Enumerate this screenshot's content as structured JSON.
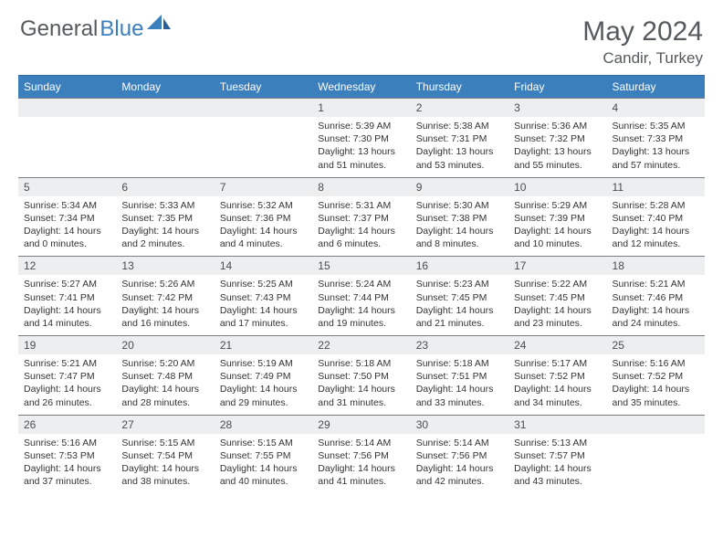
{
  "brand": {
    "part1": "General",
    "part2": "Blue"
  },
  "title": "May 2024",
  "location": "Candir, Turkey",
  "colors": {
    "header_bg": "#3b7fbd",
    "header_text": "#ffffff",
    "daynum_bg": "#eceeef",
    "border": "#7a7d80",
    "text": "#333333",
    "title_color": "#555a5e"
  },
  "weekdays": [
    "Sunday",
    "Monday",
    "Tuesday",
    "Wednesday",
    "Thursday",
    "Friday",
    "Saturday"
  ],
  "weeks": [
    [
      {
        "n": "",
        "sr": "",
        "ss": "",
        "dl": ""
      },
      {
        "n": "",
        "sr": "",
        "ss": "",
        "dl": ""
      },
      {
        "n": "",
        "sr": "",
        "ss": "",
        "dl": ""
      },
      {
        "n": "1",
        "sr": "Sunrise: 5:39 AM",
        "ss": "Sunset: 7:30 PM",
        "dl": "Daylight: 13 hours and 51 minutes."
      },
      {
        "n": "2",
        "sr": "Sunrise: 5:38 AM",
        "ss": "Sunset: 7:31 PM",
        "dl": "Daylight: 13 hours and 53 minutes."
      },
      {
        "n": "3",
        "sr": "Sunrise: 5:36 AM",
        "ss": "Sunset: 7:32 PM",
        "dl": "Daylight: 13 hours and 55 minutes."
      },
      {
        "n": "4",
        "sr": "Sunrise: 5:35 AM",
        "ss": "Sunset: 7:33 PM",
        "dl": "Daylight: 13 hours and 57 minutes."
      }
    ],
    [
      {
        "n": "5",
        "sr": "Sunrise: 5:34 AM",
        "ss": "Sunset: 7:34 PM",
        "dl": "Daylight: 14 hours and 0 minutes."
      },
      {
        "n": "6",
        "sr": "Sunrise: 5:33 AM",
        "ss": "Sunset: 7:35 PM",
        "dl": "Daylight: 14 hours and 2 minutes."
      },
      {
        "n": "7",
        "sr": "Sunrise: 5:32 AM",
        "ss": "Sunset: 7:36 PM",
        "dl": "Daylight: 14 hours and 4 minutes."
      },
      {
        "n": "8",
        "sr": "Sunrise: 5:31 AM",
        "ss": "Sunset: 7:37 PM",
        "dl": "Daylight: 14 hours and 6 minutes."
      },
      {
        "n": "9",
        "sr": "Sunrise: 5:30 AM",
        "ss": "Sunset: 7:38 PM",
        "dl": "Daylight: 14 hours and 8 minutes."
      },
      {
        "n": "10",
        "sr": "Sunrise: 5:29 AM",
        "ss": "Sunset: 7:39 PM",
        "dl": "Daylight: 14 hours and 10 minutes."
      },
      {
        "n": "11",
        "sr": "Sunrise: 5:28 AM",
        "ss": "Sunset: 7:40 PM",
        "dl": "Daylight: 14 hours and 12 minutes."
      }
    ],
    [
      {
        "n": "12",
        "sr": "Sunrise: 5:27 AM",
        "ss": "Sunset: 7:41 PM",
        "dl": "Daylight: 14 hours and 14 minutes."
      },
      {
        "n": "13",
        "sr": "Sunrise: 5:26 AM",
        "ss": "Sunset: 7:42 PM",
        "dl": "Daylight: 14 hours and 16 minutes."
      },
      {
        "n": "14",
        "sr": "Sunrise: 5:25 AM",
        "ss": "Sunset: 7:43 PM",
        "dl": "Daylight: 14 hours and 17 minutes."
      },
      {
        "n": "15",
        "sr": "Sunrise: 5:24 AM",
        "ss": "Sunset: 7:44 PM",
        "dl": "Daylight: 14 hours and 19 minutes."
      },
      {
        "n": "16",
        "sr": "Sunrise: 5:23 AM",
        "ss": "Sunset: 7:45 PM",
        "dl": "Daylight: 14 hours and 21 minutes."
      },
      {
        "n": "17",
        "sr": "Sunrise: 5:22 AM",
        "ss": "Sunset: 7:45 PM",
        "dl": "Daylight: 14 hours and 23 minutes."
      },
      {
        "n": "18",
        "sr": "Sunrise: 5:21 AM",
        "ss": "Sunset: 7:46 PM",
        "dl": "Daylight: 14 hours and 24 minutes."
      }
    ],
    [
      {
        "n": "19",
        "sr": "Sunrise: 5:21 AM",
        "ss": "Sunset: 7:47 PM",
        "dl": "Daylight: 14 hours and 26 minutes."
      },
      {
        "n": "20",
        "sr": "Sunrise: 5:20 AM",
        "ss": "Sunset: 7:48 PM",
        "dl": "Daylight: 14 hours and 28 minutes."
      },
      {
        "n": "21",
        "sr": "Sunrise: 5:19 AM",
        "ss": "Sunset: 7:49 PM",
        "dl": "Daylight: 14 hours and 29 minutes."
      },
      {
        "n": "22",
        "sr": "Sunrise: 5:18 AM",
        "ss": "Sunset: 7:50 PM",
        "dl": "Daylight: 14 hours and 31 minutes."
      },
      {
        "n": "23",
        "sr": "Sunrise: 5:18 AM",
        "ss": "Sunset: 7:51 PM",
        "dl": "Daylight: 14 hours and 33 minutes."
      },
      {
        "n": "24",
        "sr": "Sunrise: 5:17 AM",
        "ss": "Sunset: 7:52 PM",
        "dl": "Daylight: 14 hours and 34 minutes."
      },
      {
        "n": "25",
        "sr": "Sunrise: 5:16 AM",
        "ss": "Sunset: 7:52 PM",
        "dl": "Daylight: 14 hours and 35 minutes."
      }
    ],
    [
      {
        "n": "26",
        "sr": "Sunrise: 5:16 AM",
        "ss": "Sunset: 7:53 PM",
        "dl": "Daylight: 14 hours and 37 minutes."
      },
      {
        "n": "27",
        "sr": "Sunrise: 5:15 AM",
        "ss": "Sunset: 7:54 PM",
        "dl": "Daylight: 14 hours and 38 minutes."
      },
      {
        "n": "28",
        "sr": "Sunrise: 5:15 AM",
        "ss": "Sunset: 7:55 PM",
        "dl": "Daylight: 14 hours and 40 minutes."
      },
      {
        "n": "29",
        "sr": "Sunrise: 5:14 AM",
        "ss": "Sunset: 7:56 PM",
        "dl": "Daylight: 14 hours and 41 minutes."
      },
      {
        "n": "30",
        "sr": "Sunrise: 5:14 AM",
        "ss": "Sunset: 7:56 PM",
        "dl": "Daylight: 14 hours and 42 minutes."
      },
      {
        "n": "31",
        "sr": "Sunrise: 5:13 AM",
        "ss": "Sunset: 7:57 PM",
        "dl": "Daylight: 14 hours and 43 minutes."
      },
      {
        "n": "",
        "sr": "",
        "ss": "",
        "dl": ""
      }
    ]
  ]
}
